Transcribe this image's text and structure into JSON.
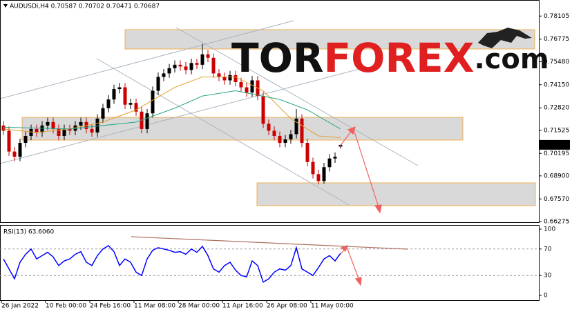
{
  "chart_data": [
    {
      "type": "candlestick",
      "title": "AUDUSDi,H4 0.70587 0.70702 0.70471 0.70687",
      "watermark": [
        "TOR",
        "FOREX",
        ".com"
      ],
      "up_color": "#000000",
      "down_color": "#cc0000",
      "open": [
        0.718,
        0.715,
        0.703,
        0.7,
        0.708,
        0.712,
        0.716,
        0.714,
        0.718,
        0.72,
        0.716,
        0.712,
        0.716,
        0.715,
        0.718,
        0.72,
        0.716,
        0.714,
        0.722,
        0.728,
        0.733,
        0.739,
        0.74,
        0.73,
        0.731,
        0.726,
        0.716,
        0.725,
        0.738,
        0.746,
        0.748,
        0.751,
        0.753,
        0.752,
        0.75,
        0.754,
        0.753,
        0.759,
        0.757,
        0.748,
        0.746,
        0.744,
        0.747,
        0.743,
        0.74,
        0.737,
        0.744,
        0.735,
        0.719,
        0.715,
        0.712,
        0.708,
        0.71,
        0.713,
        0.722,
        0.708,
        0.697,
        0.69,
        0.686,
        0.694,
        0.699,
        0.70587
      ],
      "high": [
        0.7205,
        0.7175,
        0.7055,
        0.7105,
        0.7145,
        0.7185,
        0.7185,
        0.7205,
        0.7225,
        0.7225,
        0.7185,
        0.7185,
        0.7185,
        0.7205,
        0.7225,
        0.7225,
        0.7185,
        0.7245,
        0.7305,
        0.7355,
        0.7415,
        0.7425,
        0.7425,
        0.7335,
        0.7335,
        0.7285,
        0.7275,
        0.7405,
        0.7485,
        0.7505,
        0.7535,
        0.7555,
        0.7555,
        0.7545,
        0.7565,
        0.7565,
        0.765,
        0.7615,
        0.7595,
        0.7505,
        0.7485,
        0.7495,
        0.7495,
        0.7455,
        0.7425,
        0.7465,
        0.7465,
        0.7375,
        0.7215,
        0.7175,
        0.7145,
        0.7125,
        0.7155,
        0.7275,
        0.7245,
        0.7105,
        0.6995,
        0.6925,
        0.6965,
        0.7015,
        0.7025,
        0.70702
      ],
      "low": [
        0.7125,
        0.7005,
        0.6975,
        0.6975,
        0.7055,
        0.7095,
        0.7115,
        0.7115,
        0.7155,
        0.7135,
        0.7095,
        0.7095,
        0.7125,
        0.7125,
        0.7155,
        0.7135,
        0.7115,
        0.7115,
        0.7195,
        0.7255,
        0.7305,
        0.7365,
        0.7275,
        0.7275,
        0.7235,
        0.7135,
        0.7135,
        0.7225,
        0.7355,
        0.7435,
        0.7455,
        0.7485,
        0.7495,
        0.7475,
        0.7475,
        0.7505,
        0.7505,
        0.7545,
        0.7455,
        0.7435,
        0.7415,
        0.7415,
        0.7405,
        0.7375,
        0.7345,
        0.7345,
        0.7325,
        0.7165,
        0.7125,
        0.7095,
        0.7055,
        0.7055,
        0.7075,
        0.7105,
        0.7055,
        0.6945,
        0.6875,
        0.684,
        0.6845,
        0.6915,
        0.6965,
        0.70471
      ],
      "close": [
        0.715,
        0.703,
        0.7,
        0.708,
        0.712,
        0.716,
        0.714,
        0.718,
        0.72,
        0.716,
        0.712,
        0.716,
        0.715,
        0.718,
        0.72,
        0.716,
        0.714,
        0.722,
        0.728,
        0.733,
        0.739,
        0.74,
        0.73,
        0.731,
        0.726,
        0.716,
        0.725,
        0.738,
        0.746,
        0.748,
        0.751,
        0.753,
        0.752,
        0.75,
        0.754,
        0.753,
        0.759,
        0.757,
        0.748,
        0.746,
        0.744,
        0.747,
        0.743,
        0.74,
        0.737,
        0.744,
        0.735,
        0.719,
        0.715,
        0.712,
        0.708,
        0.71,
        0.713,
        0.722,
        0.708,
        0.697,
        0.69,
        0.686,
        0.694,
        0.699,
        0.7,
        0.70687
      ],
      "moving_averages": [
        {
          "color": "#e0a030",
          "x": [
            0,
            6,
            12,
            18,
            24,
            31,
            36,
            42,
            47,
            52,
            57,
            61
          ],
          "values": [
            0.716,
            0.714,
            0.716,
            0.72,
            0.727,
            0.74,
            0.746,
            0.746,
            0.738,
            0.722,
            0.712,
            0.711
          ]
        },
        {
          "color": "#2aa58a",
          "x": [
            0,
            12,
            24,
            31,
            36,
            42,
            50,
            55,
            61
          ],
          "values": [
            0.717,
            0.716,
            0.72,
            0.728,
            0.735,
            0.738,
            0.733,
            0.727,
            0.716
          ]
        }
      ],
      "x_labels": [
        "26 Jan 2022",
        "10 Feb 00:00",
        "24 Feb 16:00",
        "11 Mar 08:00",
        "28 Mar 00:00",
        "11 Apr 16:00",
        "26 Apr 08:00",
        "11 May 00:00"
      ],
      "ylim": [
        0.6623,
        0.7903
      ],
      "yticks": [
        0.78105,
        0.76775,
        {
          "value": 0.7548,
          "label": "0.75480"
        },
        {
          "value": 0.7415,
          "label": "0.74150"
        },
        {
          "value": 0.7282,
          "label": "0.72820"
        },
        0.71525,
        0.70195,
        {
          "value": 0.689,
          "label": "0.68900"
        },
        {
          "value": 0.6757,
          "label": "0.67570"
        },
        0.66275
      ]
    },
    {
      "type": "line",
      "title": "RSI(13) 63.6060",
      "series": [
        {
          "color": "#0000ff",
          "values": [
            55,
            40,
            25,
            50,
            62,
            70,
            55,
            60,
            65,
            58,
            45,
            52,
            55,
            62,
            66,
            50,
            45,
            60,
            70,
            75,
            66,
            45,
            55,
            50,
            35,
            30,
            55,
            68,
            72,
            70,
            68,
            65,
            66,
            62,
            70,
            65,
            74,
            60,
            40,
            35,
            45,
            50,
            38,
            30,
            28,
            52,
            45,
            20,
            25,
            35,
            40,
            38,
            45,
            72,
            40,
            35,
            30,
            42,
            55,
            60,
            52,
            63.606
          ]
        }
      ],
      "levels": [
        30,
        70
      ],
      "ylim": [
        0,
        100
      ],
      "yticks": [
        0,
        30,
        70,
        100
      ]
    }
  ]
}
